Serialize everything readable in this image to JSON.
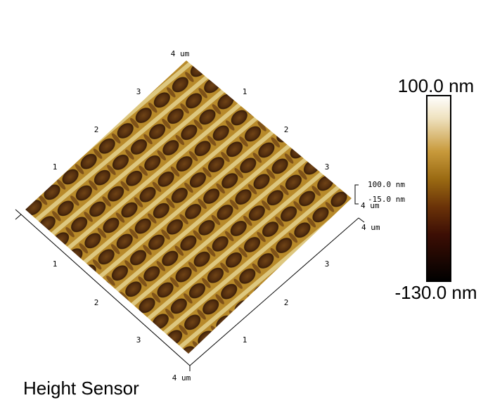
{
  "image": {
    "title": "Height Sensor",
    "colorbar": {
      "max_label": "100.0 nm",
      "min_label": "-130.0 nm"
    },
    "axes": {
      "back_left": [
        "1",
        "2",
        "3",
        "4 um"
      ],
      "back_right": [
        "1",
        "2",
        "3",
        "4 um"
      ],
      "front_left": [
        "1",
        "2",
        "3",
        "4 um"
      ],
      "front_right": [
        "1",
        "2",
        "3",
        "4 um"
      ],
      "z_labels": [
        "100.0 nm",
        "-15.0 nm"
      ]
    }
  }
}
